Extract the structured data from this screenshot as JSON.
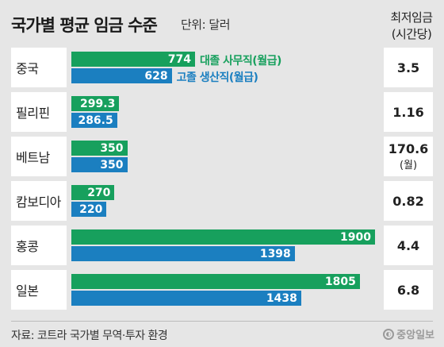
{
  "header": {
    "title": "국가별 평균 임금 수준",
    "unit": "단위: 달러",
    "min_wage_header_line1": "최저임금",
    "min_wage_header_line2": "(시간당)"
  },
  "legend": {
    "office": "대졸 사무직(월급)",
    "production": "고졸 생산직(월급)"
  },
  "rows": [
    {
      "country": "중국",
      "office": "774",
      "production": "628",
      "min_wage": "3.5",
      "min_wage_note": ""
    },
    {
      "country": "필리핀",
      "office": "299.3",
      "production": "286.5",
      "min_wage": "1.16",
      "min_wage_note": ""
    },
    {
      "country": "베트남",
      "office": "350",
      "production": "350",
      "min_wage": "170.6",
      "min_wage_note": "(월)"
    },
    {
      "country": "캄보디아",
      "office": "270",
      "production": "220",
      "min_wage": "0.82",
      "min_wage_note": ""
    },
    {
      "country": "홍콩",
      "office": "1900",
      "production": "1398",
      "min_wage": "4.4",
      "min_wage_note": ""
    },
    {
      "country": "일본",
      "office": "1805",
      "production": "1438",
      "min_wage": "6.8",
      "min_wage_note": ""
    }
  ],
  "footer": {
    "source": "자료: 코트라 국가별 무역·투자 환경",
    "logo_text": "중앙일보"
  },
  "colors": {
    "office": "#17a05d",
    "production": "#1b7fc0",
    "background": "#e6e6e6"
  },
  "chart_data": {
    "type": "bar",
    "title": "국가별 평균 임금 수준",
    "unit": "단위: 달러",
    "orientation": "horizontal",
    "categories": [
      "중국",
      "필리핀",
      "베트남",
      "캄보디아",
      "홍콩",
      "일본"
    ],
    "series": [
      {
        "name": "대졸 사무직(월급)",
        "values": [
          774,
          299.3,
          350,
          270,
          1900,
          1805
        ]
      },
      {
        "name": "고졸 생산직(월급)",
        "values": [
          628,
          286.5,
          350,
          220,
          1398,
          1438
        ]
      }
    ],
    "min_wage_hourly": [
      3.5,
      1.16,
      170.6,
      0.82,
      4.4,
      6.8
    ],
    "xlim": [
      0,
      1900
    ],
    "grid": false,
    "legend_position": "inline-first-row"
  }
}
